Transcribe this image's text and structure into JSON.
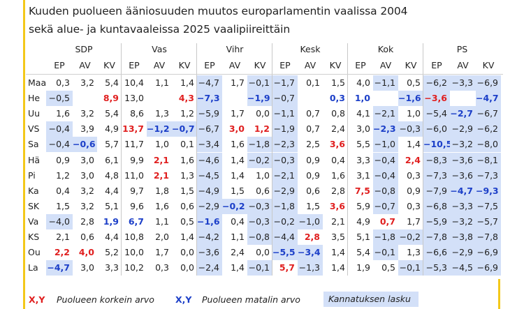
{
  "chart_data": {
    "type": "table",
    "title": [
      "Kuuden puolueen ääniosuuden muutos europarlamentin vaalissa 2004",
      "sekä alue- ja kuntavaaleissa 2025 vaalipiireittäin"
    ],
    "parties": [
      "SDP",
      "Vas",
      "Vihr",
      "Kesk",
      "Kok",
      "PS"
    ],
    "subcolumns": [
      "EP",
      "AV",
      "KV"
    ],
    "rows": [
      {
        "label": "Maa",
        "values": [
          "0,3",
          "3,2",
          "5,4",
          "10,4",
          "1,1",
          "1,4",
          "−4,7",
          "1,7",
          "−0,1",
          "−1,7",
          "0,1",
          "1,5",
          "4,0",
          "−1,1",
          "0,5",
          "−6,2",
          "−3,3",
          "−6,9"
        ]
      },
      {
        "label": "He",
        "values": [
          "−0,5",
          "",
          "8,9",
          "13,0",
          "",
          "4,3",
          "−7,3",
          "",
          "−1,9",
          "−0,7",
          "",
          "0,3",
          "1,0",
          "",
          "−1,6",
          "−3,6",
          "",
          "−4,7"
        ]
      },
      {
        "label": "Uu",
        "values": [
          "1,6",
          "3,2",
          "5,4",
          "8,6",
          "1,3",
          "1,2",
          "−5,9",
          "1,7",
          "0,0",
          "−1,1",
          "0,7",
          "0,8",
          "4,1",
          "−2,1",
          "1,0",
          "−5,4",
          "−2,7",
          "−6,7"
        ]
      },
      {
        "label": "VS",
        "values": [
          "−0,4",
          "3,9",
          "4,9",
          "13,7",
          "−1,2",
          "−0,7",
          "−6,7",
          "3,0",
          "1,2",
          "−1,9",
          "0,7",
          "2,4",
          "3,0",
          "−2,3",
          "−0,3",
          "−6,0",
          "−2,9",
          "−6,2"
        ]
      },
      {
        "label": "Sa",
        "values": [
          "−0,4",
          "−0,6",
          "5,7",
          "11,7",
          "1,0",
          "0,1",
          "−3,4",
          "1,6",
          "−1,8",
          "−2,3",
          "2,5",
          "3,6",
          "5,5",
          "−1,0",
          "1,4",
          "−10,5",
          "−3,2",
          "−8,0"
        ]
      },
      {
        "label": "Hä",
        "values": [
          "0,9",
          "3,0",
          "6,1",
          "9,9",
          "2,1",
          "1,6",
          "−4,6",
          "1,4",
          "−0,2",
          "−0,3",
          "0,9",
          "0,4",
          "3,3",
          "−0,4",
          "2,4",
          "−8,3",
          "−3,6",
          "−8,1"
        ]
      },
      {
        "label": "Pi",
        "values": [
          "1,2",
          "3,0",
          "4,8",
          "11,0",
          "2,1",
          "1,3",
          "−4,5",
          "1,4",
          "1,0",
          "−2,1",
          "0,9",
          "1,6",
          "3,1",
          "−0,4",
          "0,3",
          "−7,3",
          "−3,6",
          "−7,3"
        ]
      },
      {
        "label": "Ka",
        "values": [
          "0,4",
          "3,2",
          "4,4",
          "9,7",
          "1,8",
          "1,5",
          "−4,9",
          "1,5",
          "0,6",
          "−2,9",
          "0,6",
          "2,8",
          "7,5",
          "−0,8",
          "0,9",
          "−7,9",
          "−4,7",
          "−9,3"
        ]
      },
      {
        "label": "SK",
        "values": [
          "1,5",
          "3,2",
          "5,1",
          "9,6",
          "1,6",
          "0,6",
          "−2,9",
          "−0,2",
          "−0,3",
          "−1,8",
          "1,5",
          "3,6",
          "5,9",
          "−0,7",
          "0,3",
          "−6,8",
          "−3,3",
          "−7,5"
        ]
      },
      {
        "label": "Va",
        "values": [
          "−4,0",
          "2,8",
          "1,9",
          "6,7",
          "1,1",
          "0,5",
          "−1,6",
          "0,4",
          "−0,3",
          "−0,2",
          "−1,0",
          "2,1",
          "4,9",
          "0,7",
          "1,7",
          "−5,9",
          "−3,2",
          "−5,7"
        ]
      },
      {
        "label": "KS",
        "values": [
          "2,1",
          "0,6",
          "4,4",
          "10,8",
          "2,0",
          "1,4",
          "−4,2",
          "1,1",
          "−0,8",
          "−4,4",
          "2,8",
          "3,5",
          "5,1",
          "−1,8",
          "−0,2",
          "−7,8",
          "−3,8",
          "−7,8"
        ]
      },
      {
        "label": "Ou",
        "values": [
          "2,2",
          "4,0",
          "5,2",
          "10,0",
          "1,7",
          "0,0",
          "−3,6",
          "2,4",
          "0,0",
          "−5,5",
          "−3,4",
          "1,4",
          "5,4",
          "−0,1",
          "1,3",
          "−6,6",
          "−2,9",
          "−6,9"
        ]
      },
      {
        "label": "La",
        "values": [
          "−4,7",
          "3,0",
          "3,3",
          "10,2",
          "0,3",
          "0,0",
          "−2,4",
          "1,4",
          "−0,1",
          "5,7",
          "−1,3",
          "1,4",
          "1,9",
          "0,5",
          "−0,1",
          "−5,3",
          "−4,5",
          "−6,9"
        ]
      }
    ],
    "highest_cells": [
      [
        1,
        2
      ],
      [
        1,
        5
      ],
      [
        1,
        15
      ],
      [
        3,
        3
      ],
      [
        3,
        7
      ],
      [
        3,
        8
      ],
      [
        4,
        11
      ],
      [
        5,
        4
      ],
      [
        5,
        14
      ],
      [
        6,
        4
      ],
      [
        7,
        12
      ],
      [
        8,
        11
      ],
      [
        9,
        13
      ],
      [
        10,
        10
      ],
      [
        11,
        0
      ],
      [
        11,
        1
      ],
      [
        12,
        9
      ]
    ],
    "lowest_cells": [
      [
        1,
        6
      ],
      [
        1,
        8
      ],
      [
        1,
        11
      ],
      [
        1,
        12
      ],
      [
        1,
        14
      ],
      [
        1,
        17
      ],
      [
        2,
        16
      ],
      [
        3,
        4
      ],
      [
        3,
        5
      ],
      [
        3,
        13
      ],
      [
        4,
        1
      ],
      [
        4,
        15
      ],
      [
        7,
        16
      ],
      [
        7,
        17
      ],
      [
        8,
        7
      ],
      [
        9,
        2
      ],
      [
        9,
        3
      ],
      [
        9,
        6
      ],
      [
        11,
        9
      ],
      [
        11,
        10
      ],
      [
        12,
        0
      ]
    ],
    "legend": {
      "max_marker": "X,Y",
      "max_label": "Puolueen korkein arvo",
      "min_marker": "X,Y",
      "min_label": "Puolueen matalin arvo",
      "decline_label": "Kannatuksen lasku"
    },
    "colors": {
      "highest": "#e01f1f",
      "lowest": "#1c3fc8",
      "decline_fill": "#d3e0f8",
      "accent": "#f3c81a"
    }
  }
}
